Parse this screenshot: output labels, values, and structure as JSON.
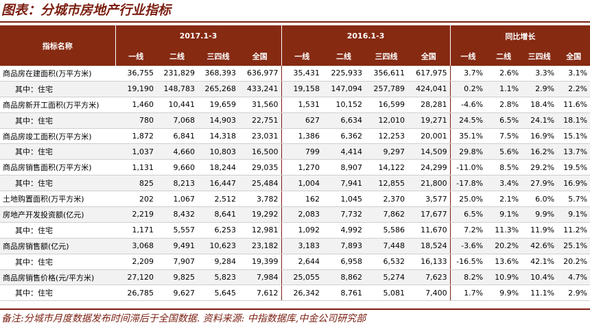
{
  "title": "图表：分城市房地产行业指标",
  "header": {
    "indicator": "指标名称",
    "groups": [
      "2017.1-3",
      "2016.1-3",
      "同比增长"
    ],
    "subs": [
      "一线",
      "二线",
      "三四线",
      "全国"
    ]
  },
  "rows": [
    {
      "label": "商品房在建面积(万平方米)",
      "sub": false,
      "v": [
        "36,755",
        "231,829",
        "368,393",
        "636,977",
        "35,431",
        "225,933",
        "356,611",
        "617,975",
        "3.7%",
        "2.6%",
        "3.3%",
        "3.1%"
      ]
    },
    {
      "label": "其中：住宅",
      "sub": true,
      "v": [
        "19,190",
        "148,783",
        "265,268",
        "433,241",
        "19,158",
        "147,094",
        "257,789",
        "424,041",
        "0.2%",
        "1.1%",
        "2.9%",
        "2.2%"
      ]
    },
    {
      "label": "商品房新开工面积(万平方米)",
      "sub": false,
      "v": [
        "1,460",
        "10,441",
        "19,659",
        "31,560",
        "1,531",
        "10,152",
        "16,599",
        "28,281",
        "-4.6%",
        "2.8%",
        "18.4%",
        "11.6%"
      ]
    },
    {
      "label": "其中：住宅",
      "sub": true,
      "v": [
        "780",
        "7,068",
        "14,903",
        "22,751",
        "627",
        "6,634",
        "12,010",
        "19,271",
        "24.5%",
        "6.5%",
        "24.1%",
        "18.1%"
      ]
    },
    {
      "label": "商品房竣工面积(万平方米)",
      "sub": false,
      "v": [
        "1,872",
        "6,841",
        "14,318",
        "23,031",
        "1,386",
        "6,362",
        "12,253",
        "20,001",
        "35.1%",
        "7.5%",
        "16.9%",
        "15.1%"
      ]
    },
    {
      "label": "其中：住宅",
      "sub": true,
      "v": [
        "1,037",
        "4,660",
        "10,803",
        "16,500",
        "799",
        "4,414",
        "9,297",
        "14,509",
        "29.8%",
        "5.6%",
        "16.2%",
        "13.7%"
      ]
    },
    {
      "label": "商品房销售面积(万平方米)",
      "sub": false,
      "v": [
        "1,131",
        "9,660",
        "18,244",
        "29,035",
        "1,270",
        "8,907",
        "14,122",
        "24,299",
        "-11.0%",
        "8.5%",
        "29.2%",
        "19.5%"
      ]
    },
    {
      "label": "其中：住宅",
      "sub": true,
      "v": [
        "825",
        "8,213",
        "16,447",
        "25,484",
        "1,004",
        "7,941",
        "12,855",
        "21,800",
        "-17.8%",
        "3.4%",
        "27.9%",
        "16.9%"
      ]
    },
    {
      "label": "土地购置面积(万平方米)",
      "sub": false,
      "v": [
        "202",
        "1,067",
        "2,512",
        "3,782",
        "162",
        "1,045",
        "2,370",
        "3,577",
        "25.0%",
        "2.1%",
        "6.0%",
        "5.7%"
      ]
    },
    {
      "label": "房地产开发投资额(亿元)",
      "sub": false,
      "v": [
        "2,219",
        "8,432",
        "8,641",
        "19,292",
        "2,083",
        "7,732",
        "7,862",
        "17,677",
        "6.5%",
        "9.1%",
        "9.9%",
        "9.1%"
      ]
    },
    {
      "label": "其中：住宅",
      "sub": true,
      "v": [
        "1,171",
        "5,557",
        "6,253",
        "12,981",
        "1,092",
        "4,992",
        "5,586",
        "11,670",
        "7.2%",
        "11.3%",
        "11.9%",
        "11.2%"
      ]
    },
    {
      "label": "商品房销售额(亿元)",
      "sub": false,
      "v": [
        "3,068",
        "9,491",
        "10,623",
        "23,182",
        "3,183",
        "7,893",
        "7,448",
        "18,524",
        "-3.6%",
        "20.2%",
        "42.6%",
        "25.1%"
      ]
    },
    {
      "label": "其中：住宅",
      "sub": true,
      "v": [
        "2,209",
        "7,907",
        "9,284",
        "19,399",
        "2,644",
        "6,958",
        "6,532",
        "16,133",
        "-16.5%",
        "13.6%",
        "42.1%",
        "20.2%"
      ]
    },
    {
      "label": "商品房销售价格(元/平方米)",
      "sub": false,
      "v": [
        "27,120",
        "9,825",
        "5,823",
        "7,984",
        "25,055",
        "8,862",
        "5,274",
        "7,623",
        "8.2%",
        "10.9%",
        "10.4%",
        "4.7%"
      ]
    },
    {
      "label": "其中：住宅",
      "sub": true,
      "v": [
        "26,785",
        "9,627",
        "5,645",
        "7,612",
        "26,342",
        "8,761",
        "5,081",
        "7,400",
        "1.7%",
        "9.9%",
        "11.1%",
        "2.9%"
      ]
    }
  ],
  "note": "备注:分城市月度数据发布时间滞后于全国数据. 资料来源: 中指数据库,中金公司研究部"
}
